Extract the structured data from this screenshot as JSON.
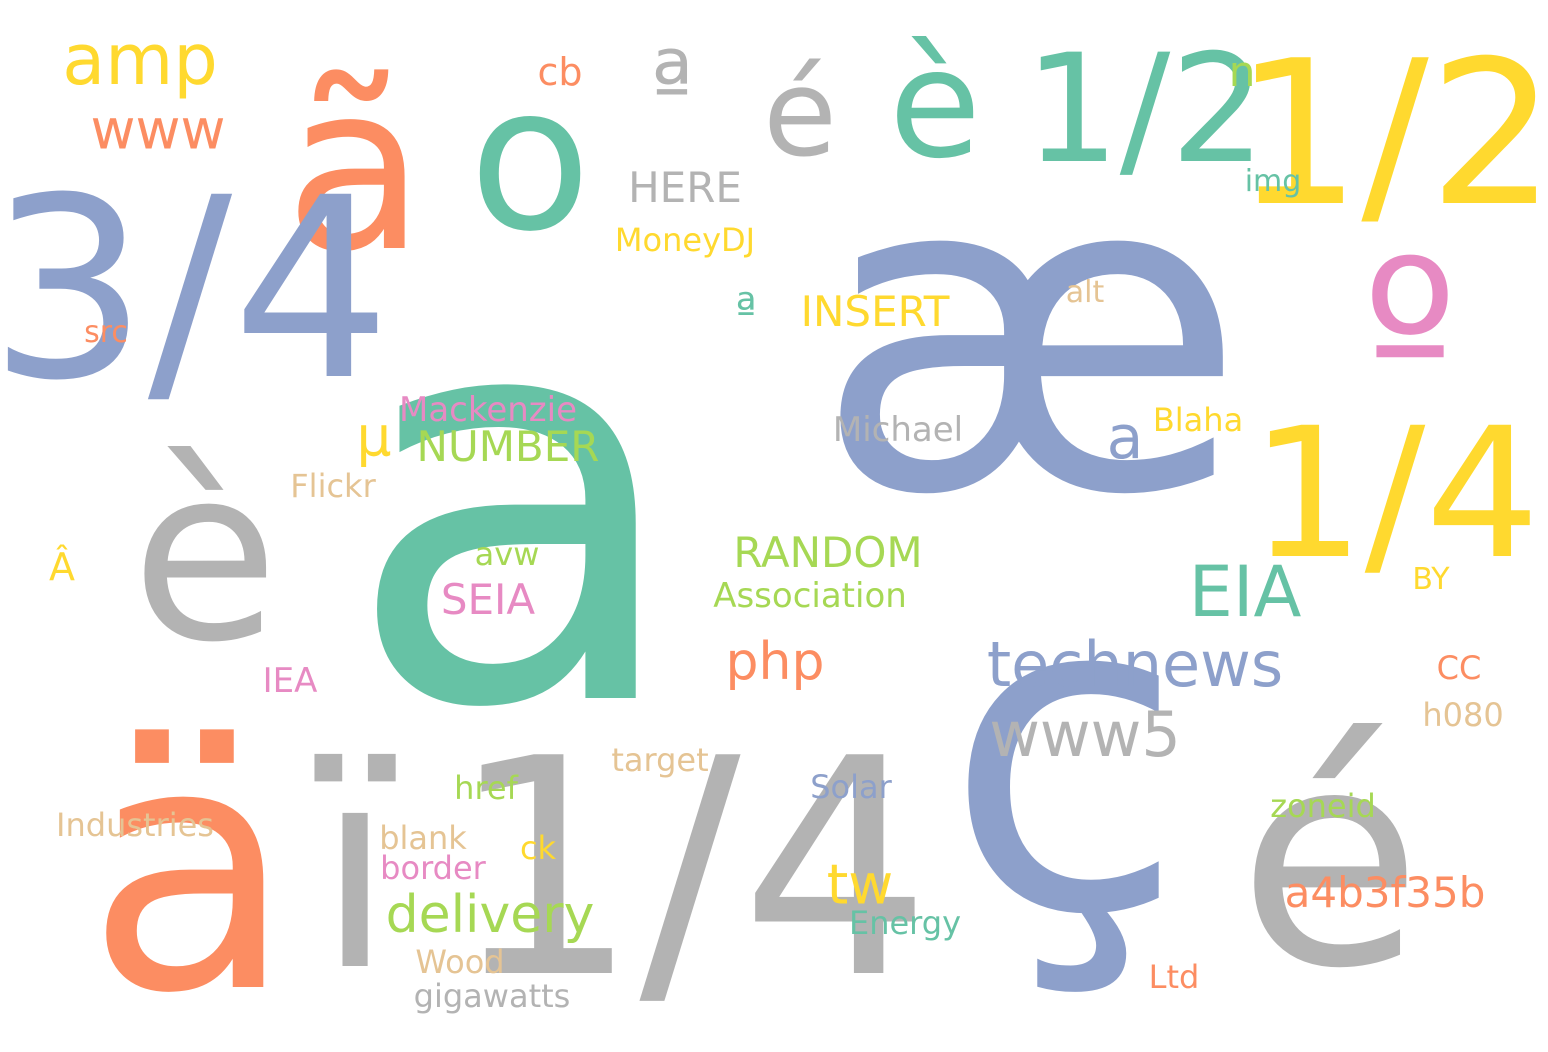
{
  "palette": {
    "green": "#66C2A5",
    "orange": "#FC8D62",
    "blue": "#8DA0CB",
    "pink": "#E78AC3",
    "lime": "#A6D854",
    "yellow": "#FFD92F",
    "tan": "#E5C494",
    "gray": "#B3B3B3"
  },
  "words": [
    {
      "text": "a",
      "color": "green"
    },
    {
      "text": "æ",
      "color": "blue"
    },
    {
      "text": "ç",
      "color": "blue"
    },
    {
      "text": "é",
      "color": "gray"
    },
    {
      "text": "ä",
      "color": "orange"
    },
    {
      "text": "ï",
      "color": "gray"
    },
    {
      "text": "è",
      "color": "gray"
    },
    {
      "text": "ã",
      "color": "orange"
    },
    {
      "text": "o",
      "color": "green"
    },
    {
      "text": "3/4",
      "color": "blue"
    },
    {
      "text": "1/4",
      "color": "gray"
    },
    {
      "text": "1/2",
      "color": "yellow"
    },
    {
      "text": "1/4",
      "color": "yellow"
    },
    {
      "text": "º",
      "color": "pink"
    },
    {
      "text": "è",
      "color": "green"
    },
    {
      "text": "1/2",
      "color": "green"
    },
    {
      "text": "é",
      "color": "gray"
    },
    {
      "text": "ª",
      "color": "gray"
    },
    {
      "text": "amp",
      "color": "yellow"
    },
    {
      "text": "www",
      "color": "orange"
    },
    {
      "text": "technews",
      "color": "blue"
    },
    {
      "text": "www5",
      "color": "gray"
    },
    {
      "text": "EIA",
      "color": "green"
    },
    {
      "text": "delivery",
      "color": "lime"
    },
    {
      "text": "php",
      "color": "orange"
    },
    {
      "text": "tw",
      "color": "yellow"
    },
    {
      "text": "a4b3f35b",
      "color": "orange"
    },
    {
      "text": "NUMBER",
      "color": "lime"
    },
    {
      "text": "RANDOM",
      "color": "lime"
    },
    {
      "text": "INSERT",
      "color": "yellow"
    },
    {
      "text": "HERE",
      "color": "gray"
    },
    {
      "text": "a",
      "color": "blue"
    },
    {
      "text": "ª",
      "color": "green"
    },
    {
      "text": "SEIA",
      "color": "pink"
    },
    {
      "text": "Association",
      "color": "lime"
    },
    {
      "text": "Michael",
      "color": "gray"
    },
    {
      "text": "Mackenzie",
      "color": "pink"
    },
    {
      "text": "µ",
      "color": "yellow"
    },
    {
      "text": "MoneyDJ",
      "color": "yellow"
    },
    {
      "text": "Blaha",
      "color": "yellow"
    },
    {
      "text": "Solar",
      "color": "blue"
    },
    {
      "text": "Energy",
      "color": "green"
    },
    {
      "text": "zoneid",
      "color": "lime"
    },
    {
      "text": "Industries",
      "color": "tan"
    },
    {
      "text": "gigawatts",
      "color": "gray"
    },
    {
      "text": "Wood",
      "color": "tan"
    },
    {
      "text": "blank",
      "color": "tan"
    },
    {
      "text": "border",
      "color": "pink"
    },
    {
      "text": "href",
      "color": "lime"
    },
    {
      "text": "target",
      "color": "tan"
    },
    {
      "text": "ck",
      "color": "yellow"
    },
    {
      "text": "avw",
      "color": "lime"
    },
    {
      "text": "IEA",
      "color": "pink"
    },
    {
      "text": "Flickr",
      "color": "tan"
    },
    {
      "text": "Â",
      "color": "yellow"
    },
    {
      "text": "src",
      "color": "orange"
    },
    {
      "text": "cb",
      "color": "orange"
    },
    {
      "text": "n",
      "color": "lime"
    },
    {
      "text": "img",
      "color": "green"
    },
    {
      "text": "alt",
      "color": "tan"
    },
    {
      "text": "BY",
      "color": "yellow"
    },
    {
      "text": "CC",
      "color": "orange"
    },
    {
      "text": "h080",
      "color": "tan"
    },
    {
      "text": "Ltd",
      "color": "orange"
    }
  ]
}
